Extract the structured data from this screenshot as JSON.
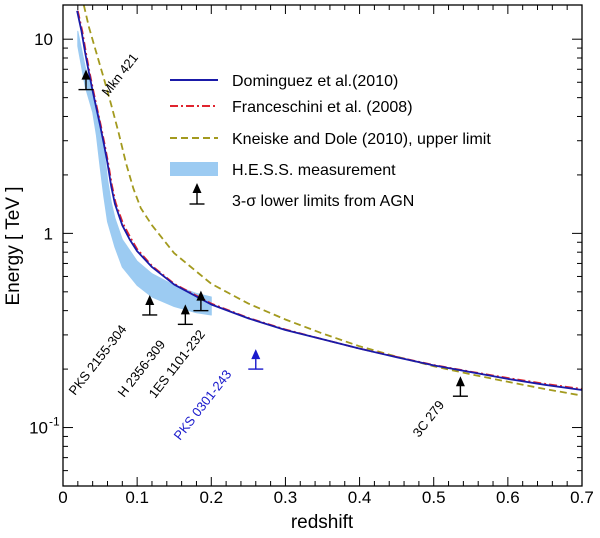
{
  "chart_data": {
    "type": "line",
    "xlabel": "redshift",
    "ylabel": "Energy  [ TeV ]",
    "xlim": [
      0,
      0.7
    ],
    "ylim": [
      0.05,
      15
    ],
    "yscale": "log",
    "x_ticks": [
      {
        "value": 0,
        "label": "0"
      },
      {
        "value": 0.1,
        "label": "0.1"
      },
      {
        "value": 0.2,
        "label": "0.2"
      },
      {
        "value": 0.3,
        "label": "0.3"
      },
      {
        "value": 0.4,
        "label": "0.4"
      },
      {
        "value": 0.5,
        "label": "0.5"
      },
      {
        "value": 0.6,
        "label": "0.6"
      },
      {
        "value": 0.7,
        "label": "0.7"
      }
    ],
    "y_ticks": [
      {
        "value": 10,
        "label": "10"
      },
      {
        "value": 1,
        "label": "1"
      },
      {
        "value": 0.1,
        "label": "10",
        "sup": "-1"
      }
    ],
    "series": [
      {
        "name": "Dominguez et al.(2010)",
        "color": "#1a1aa8",
        "dash": "",
        "points": [
          [
            0.019,
            14
          ],
          [
            0.025,
            11
          ],
          [
            0.03,
            8.5
          ],
          [
            0.035,
            6.7
          ],
          [
            0.04,
            5.4
          ],
          [
            0.045,
            4.4
          ],
          [
            0.05,
            3.6
          ],
          [
            0.055,
            2.9
          ],
          [
            0.06,
            2.3
          ],
          [
            0.065,
            1.75
          ],
          [
            0.07,
            1.42
          ],
          [
            0.08,
            1.1
          ],
          [
            0.09,
            0.93
          ],
          [
            0.1,
            0.81
          ],
          [
            0.12,
            0.67
          ],
          [
            0.15,
            0.545
          ],
          [
            0.2,
            0.43
          ],
          [
            0.25,
            0.365
          ],
          [
            0.3,
            0.318
          ],
          [
            0.35,
            0.285
          ],
          [
            0.4,
            0.255
          ],
          [
            0.45,
            0.23
          ],
          [
            0.5,
            0.209
          ],
          [
            0.55,
            0.193
          ],
          [
            0.6,
            0.178
          ],
          [
            0.65,
            0.166
          ],
          [
            0.7,
            0.156
          ]
        ]
      },
      {
        "name": "Franceschini et al. (2008)",
        "color": "#e0242e",
        "dash": "8,3,2,3",
        "points": [
          [
            0.02,
            14
          ],
          [
            0.026,
            11
          ],
          [
            0.031,
            8.5
          ],
          [
            0.036,
            6.7
          ],
          [
            0.041,
            5.4
          ],
          [
            0.046,
            4.4
          ],
          [
            0.051,
            3.6
          ],
          [
            0.056,
            2.9
          ],
          [
            0.061,
            2.3
          ],
          [
            0.066,
            1.77
          ],
          [
            0.071,
            1.44
          ],
          [
            0.081,
            1.12
          ],
          [
            0.091,
            0.95
          ],
          [
            0.1,
            0.83
          ],
          [
            0.12,
            0.68
          ],
          [
            0.15,
            0.55
          ],
          [
            0.2,
            0.435
          ],
          [
            0.25,
            0.367
          ],
          [
            0.3,
            0.32
          ],
          [
            0.35,
            0.285
          ],
          [
            0.4,
            0.255
          ],
          [
            0.45,
            0.231
          ],
          [
            0.5,
            0.21
          ],
          [
            0.55,
            0.194
          ],
          [
            0.6,
            0.18
          ],
          [
            0.65,
            0.168
          ],
          [
            0.7,
            0.158
          ]
        ]
      },
      {
        "name": "Kneiske and Dole (2010), upper limit",
        "color": "#a39a1e",
        "dash": "7,4",
        "points": [
          [
            0.028,
            15
          ],
          [
            0.035,
            11.5
          ],
          [
            0.045,
            8.5
          ],
          [
            0.055,
            6.3
          ],
          [
            0.065,
            4.6
          ],
          [
            0.075,
            3.3
          ],
          [
            0.085,
            2.3
          ],
          [
            0.095,
            1.7
          ],
          [
            0.105,
            1.35
          ],
          [
            0.12,
            1.1
          ],
          [
            0.15,
            0.79
          ],
          [
            0.2,
            0.55
          ],
          [
            0.25,
            0.435
          ],
          [
            0.3,
            0.36
          ],
          [
            0.35,
            0.305
          ],
          [
            0.4,
            0.262
          ],
          [
            0.45,
            0.232
          ],
          [
            0.5,
            0.207
          ],
          [
            0.55,
            0.188
          ],
          [
            0.6,
            0.172
          ],
          [
            0.65,
            0.158
          ],
          [
            0.7,
            0.146
          ]
        ]
      }
    ],
    "band": {
      "name": "H.E.S.S. measurement",
      "color": "#9ccbf2",
      "upper": [
        [
          0.02,
          11
        ],
        [
          0.03,
          7.2
        ],
        [
          0.04,
          5.4
        ],
        [
          0.05,
          3.8
        ],
        [
          0.055,
          2.8
        ],
        [
          0.06,
          1.9
        ],
        [
          0.065,
          1.45
        ],
        [
          0.07,
          1.2
        ],
        [
          0.08,
          0.93
        ],
        [
          0.1,
          0.72
        ],
        [
          0.12,
          0.62
        ],
        [
          0.15,
          0.54
        ],
        [
          0.18,
          0.49
        ],
        [
          0.2,
          0.47
        ]
      ],
      "lower": [
        [
          0.02,
          9.2
        ],
        [
          0.03,
          5.7
        ],
        [
          0.04,
          4.2
        ],
        [
          0.045,
          3.2
        ],
        [
          0.05,
          2.2
        ],
        [
          0.055,
          1.55
        ],
        [
          0.06,
          1.15
        ],
        [
          0.07,
          0.85
        ],
        [
          0.08,
          0.67
        ],
        [
          0.1,
          0.54
        ],
        [
          0.12,
          0.47
        ],
        [
          0.15,
          0.42
        ],
        [
          0.18,
          0.39
        ],
        [
          0.2,
          0.38
        ]
      ]
    },
    "lower_limits": [
      {
        "name": "Mkn 421",
        "z": 0.031,
        "energy": 5.5,
        "color": "#000000"
      },
      {
        "name": "PKS 2155-304",
        "z": 0.117,
        "energy": 0.38,
        "color": "#000000"
      },
      {
        "name": "H 2356-309",
        "z": 0.165,
        "energy": 0.34,
        "color": "#000000"
      },
      {
        "name": "1ES 1101-232",
        "z": 0.186,
        "energy": 0.4,
        "color": "#000000"
      },
      {
        "name": "PKS 0301-243",
        "z": 0.26,
        "energy": 0.2,
        "color": "#1a1acc"
      },
      {
        "name": "3C 279",
        "z": 0.536,
        "energy": 0.145,
        "color": "#000000"
      }
    ],
    "legend": {
      "position": "top-right",
      "limits_label": "3-σ lower limits from AGN"
    }
  }
}
